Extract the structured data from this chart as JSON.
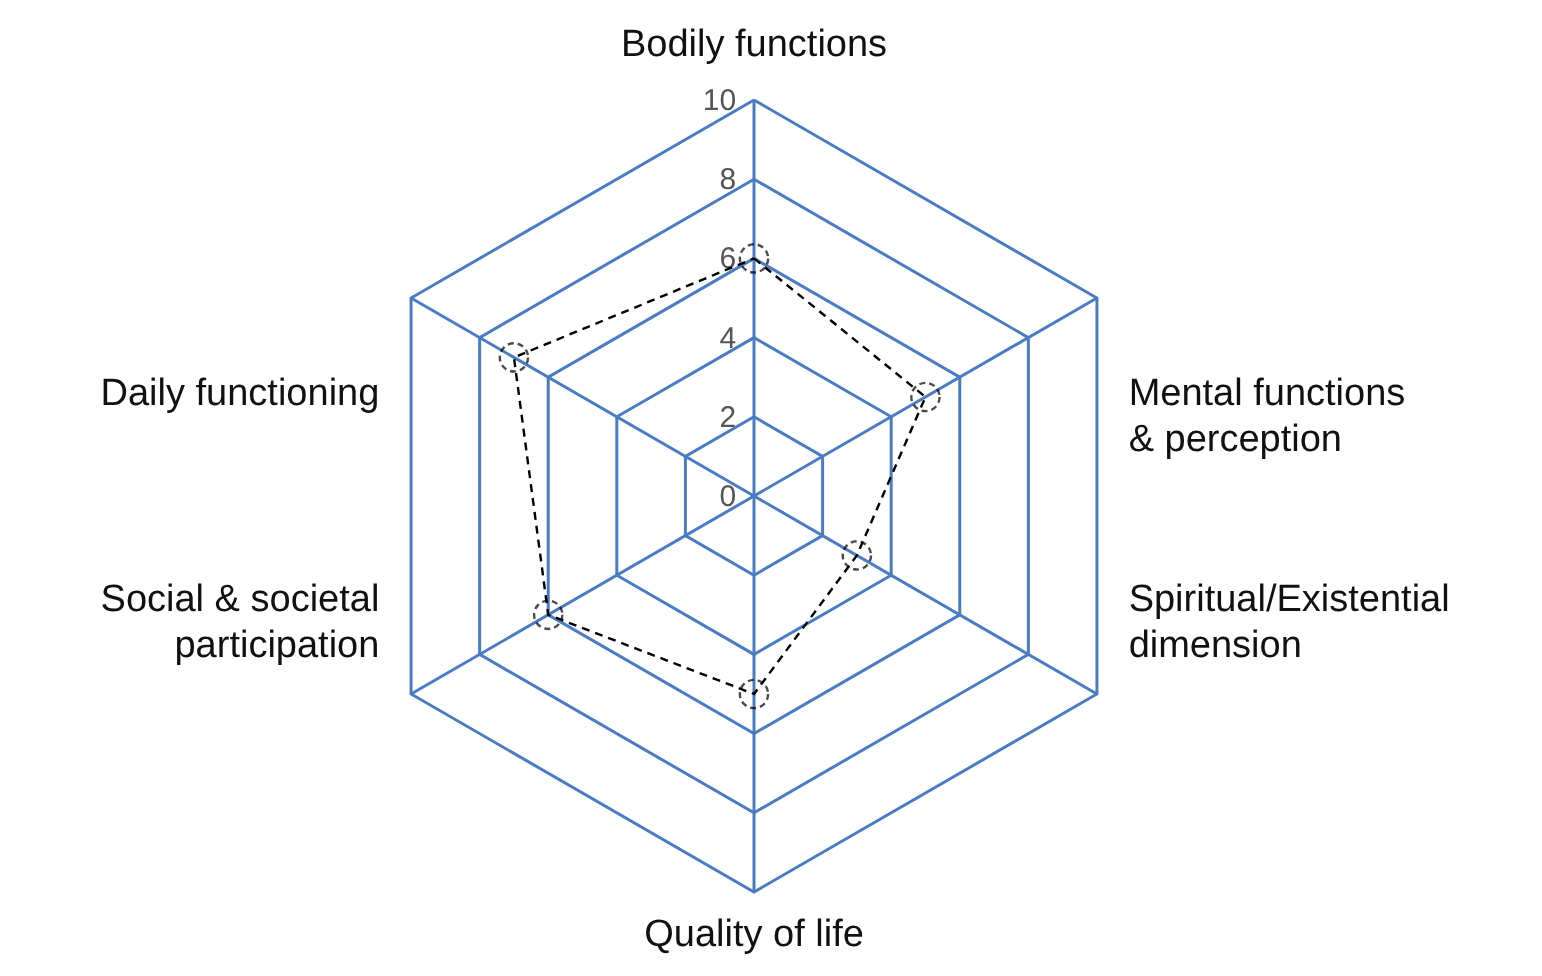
{
  "chart_data": {
    "type": "radar",
    "categories": [
      "Bodily functions",
      "Mental functions\n& perception",
      "Spiritual/Existential\ndimension",
      "Quality of life",
      "Social & societal\nparticipation",
      "Daily functioning"
    ],
    "series": [
      {
        "color": "#000000",
        "values": [
          6,
          5,
          3,
          5,
          6,
          7
        ]
      }
    ],
    "ylim": [
      0,
      10
    ],
    "yticks": [
      0,
      2,
      4,
      6,
      8,
      10
    ],
    "grid": true,
    "marker": "circle",
    "line_style": "dashed"
  }
}
